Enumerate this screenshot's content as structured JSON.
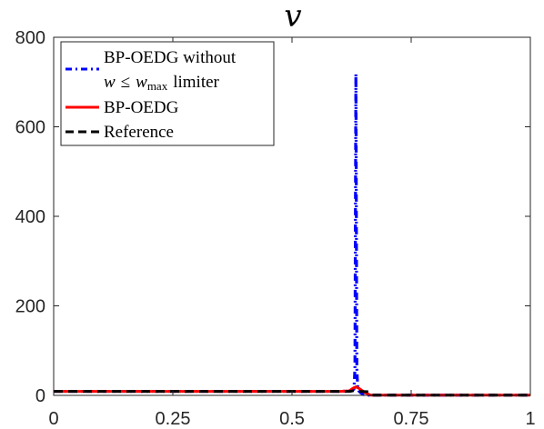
{
  "chart_data": {
    "type": "line",
    "title": "v",
    "xlabel": "",
    "ylabel": "",
    "xlim": [
      0,
      1
    ],
    "ylim": [
      0,
      800
    ],
    "x_ticks": [
      0,
      0.25,
      0.5,
      0.75,
      1
    ],
    "x_tick_labels": [
      "0",
      "0.25",
      "0.5",
      "0.75",
      "1"
    ],
    "y_ticks": [
      0,
      200,
      400,
      600,
      800
    ],
    "y_tick_labels": [
      "0",
      "200",
      "400",
      "600",
      "800"
    ],
    "grid": false,
    "legend_position": "top-left",
    "series": [
      {
        "name": "BP-OEDG without w ≤ w_max limiter",
        "legend_line1": "BP-OEDG without",
        "legend_line2_var": "w",
        "legend_line2_sym": "≤",
        "legend_line2_wmax": "w",
        "legend_line2_sub": "max",
        "legend_line2_tail": "limiter",
        "color": "#0000ff",
        "style": "dash-dot",
        "x": [
          0,
          0.6,
          0.625,
          0.63,
          0.632,
          0.634,
          0.636,
          0.638,
          0.64,
          0.645,
          0.65,
          0.66,
          0.67,
          0.7,
          1.0
        ],
        "y": [
          9,
          9,
          10,
          14,
          60,
          718,
          60,
          14,
          10,
          5,
          2,
          0.5,
          0.5,
          0.5,
          0.5
        ]
      },
      {
        "name": "BP-OEDG",
        "color": "#ff0000",
        "style": "solid",
        "x": [
          0,
          0.6,
          0.62,
          0.628,
          0.634,
          0.64,
          0.648,
          0.655,
          0.665,
          0.7,
          1.0
        ],
        "y": [
          9,
          9,
          10,
          16,
          19,
          16,
          10,
          5,
          0.5,
          0.5,
          0.5
        ]
      },
      {
        "name": "Reference",
        "color": "#000000",
        "style": "dashed",
        "x": [
          0,
          0.622,
          0.632,
          0.642,
          0.66,
          0.668,
          1.0
        ],
        "y": [
          9,
          9,
          11,
          9,
          8,
          0.5,
          0.5
        ]
      }
    ]
  }
}
